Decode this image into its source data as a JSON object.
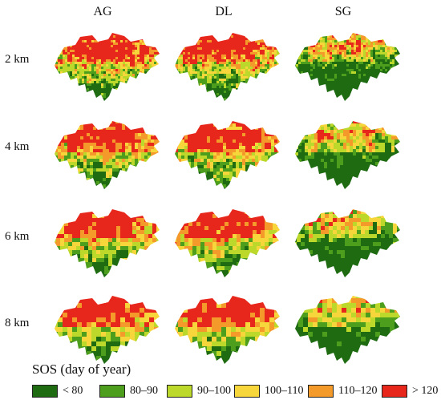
{
  "columns": [
    "AG",
    "DL",
    "SG"
  ],
  "rows": [
    "2 km",
    "4 km",
    "6 km",
    "8 km"
  ],
  "legend": {
    "title": "SOS (day of year)",
    "items": [
      {
        "label": "< 80",
        "color": "#1e6b12"
      },
      {
        "label": "80–90",
        "color": "#4c9e1c"
      },
      {
        "label": "90–100",
        "color": "#bcd82b"
      },
      {
        "label": "100–110",
        "color": "#f7d63b"
      },
      {
        "label": "110–120",
        "color": "#f39a2b"
      },
      {
        "label": "> 120",
        "color": "#e8271c"
      }
    ]
  }
}
